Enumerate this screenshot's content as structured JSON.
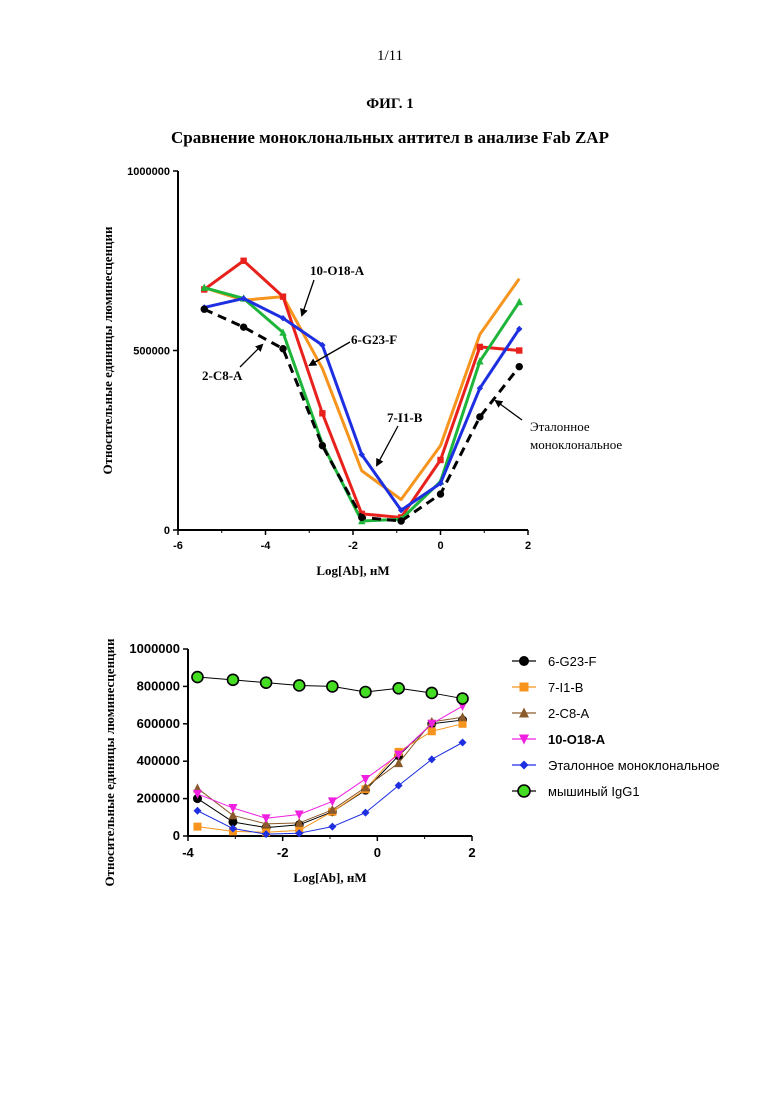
{
  "page": {
    "number": "1/11",
    "figure_label": "ФИГ. 1",
    "title": "Сравнение моноклональных антител в анализе Fab ZAP"
  },
  "chart_data": [
    {
      "type": "line",
      "xlabel": "Log[Ab], нМ",
      "ylabel": "Относительные единицы люминесценции",
      "xlim": [
        -6,
        2
      ],
      "ylim": [
        0,
        1000000
      ],
      "x_ticks": [
        "-6",
        "-4",
        "-2",
        "0",
        "2"
      ],
      "y_ticks": [
        "0",
        "500000",
        "1000000"
      ],
      "grid": false,
      "series": [
        {
          "name": "10-O18-A",
          "color": "#f7941d",
          "marker": "none",
          "dash": false,
          "points": [
            [
              -5.4,
              675000
            ],
            [
              -4.5,
              640000
            ],
            [
              -3.6,
              650000
            ],
            [
              -2.7,
              450000
            ],
            [
              -1.8,
              165000
            ],
            [
              -0.9,
              85000
            ],
            [
              0,
              235000
            ],
            [
              0.9,
              545000
            ],
            [
              1.8,
              700000
            ]
          ]
        },
        {
          "name": "6-G23-F",
          "color": "#e8211d",
          "marker": "square",
          "dash": false,
          "points": [
            [
              -5.4,
              670000
            ],
            [
              -4.5,
              750000
            ],
            [
              -3.6,
              650000
            ],
            [
              -2.7,
              325000
            ],
            [
              -1.8,
              45000
            ],
            [
              -0.9,
              35000
            ],
            [
              0,
              195000
            ],
            [
              0.9,
              510000
            ],
            [
              1.8,
              500000
            ]
          ]
        },
        {
          "name": "2-C8-A",
          "color": "#1db53a",
          "marker": "triangle",
          "dash": false,
          "points": [
            [
              -5.4,
              675000
            ],
            [
              -4.5,
              645000
            ],
            [
              -3.6,
              550000
            ],
            [
              -2.7,
              240000
            ],
            [
              -1.8,
              25000
            ],
            [
              -0.9,
              30000
            ],
            [
              0,
              135000
            ],
            [
              0.9,
              470000
            ],
            [
              1.8,
              635000
            ]
          ]
        },
        {
          "name": "7-I1-B",
          "color": "#1d2fe0",
          "marker": "diamond",
          "dash": false,
          "points": [
            [
              -5.4,
              620000
            ],
            [
              -4.5,
              645000
            ],
            [
              -3.6,
              590000
            ],
            [
              -2.7,
              515000
            ],
            [
              -1.8,
              210000
            ],
            [
              -0.9,
              55000
            ],
            [
              0,
              130000
            ],
            [
              0.9,
              395000
            ],
            [
              1.8,
              560000
            ]
          ]
        },
        {
          "name": "Эталонное моноклональное",
          "color": "#000000",
          "marker": "circle",
          "dash": true,
          "points": [
            [
              -5.4,
              615000
            ],
            [
              -4.5,
              565000
            ],
            [
              -3.6,
              505000
            ],
            [
              -2.7,
              235000
            ],
            [
              -1.8,
              35000
            ],
            [
              -0.9,
              25000
            ],
            [
              0,
              100000
            ],
            [
              0.9,
              315000
            ],
            [
              1.8,
              455000
            ]
          ]
        }
      ],
      "annotations": [
        "10-O18-A",
        "6-G23-F",
        "2-C8-A",
        "7-I1-B",
        "Эталонное",
        "моноклональное"
      ]
    },
    {
      "type": "line",
      "xlabel": "Log[Ab], нМ",
      "ylabel": "Относительные единицы люминесценции",
      "xlim": [
        -4,
        2
      ],
      "ylim": [
        0,
        1000000
      ],
      "x_ticks": [
        "-4",
        "-2",
        "0",
        "2"
      ],
      "y_ticks": [
        "0",
        "200000",
        "400000",
        "600000",
        "800000",
        "1000000"
      ],
      "grid": false,
      "legend_position": "right",
      "series": [
        {
          "name": "6-G23-F",
          "color": "#000000",
          "marker": "circle",
          "points": [
            [
              -3.8,
              200000
            ],
            [
              -3.05,
              75000
            ],
            [
              -2.35,
              45000
            ],
            [
              -1.65,
              60000
            ],
            [
              -0.95,
              130000
            ],
            [
              -0.25,
              245000
            ],
            [
              0.45,
              430000
            ],
            [
              1.15,
              600000
            ],
            [
              1.8,
              620000
            ]
          ]
        },
        {
          "name": "7-I1-B",
          "color": "#f7941d",
          "marker": "square",
          "points": [
            [
              -3.8,
              50000
            ],
            [
              -3.05,
              25000
            ],
            [
              -2.35,
              20000
            ],
            [
              -1.65,
              30000
            ],
            [
              -0.95,
              130000
            ],
            [
              -0.25,
              250000
            ],
            [
              0.45,
              450000
            ],
            [
              1.15,
              560000
            ],
            [
              1.8,
              600000
            ]
          ]
        },
        {
          "name": "2-C8-A",
          "color": "#8b5a2b",
          "marker": "triangle",
          "points": [
            [
              -3.8,
              255000
            ],
            [
              -3.05,
              110000
            ],
            [
              -2.35,
              65000
            ],
            [
              -1.65,
              70000
            ],
            [
              -0.95,
              140000
            ],
            [
              -0.25,
              260000
            ],
            [
              0.45,
              390000
            ],
            [
              1.15,
              610000
            ],
            [
              1.8,
              635000
            ]
          ]
        },
        {
          "name": "10-O18-A",
          "color": "#f020e0",
          "marker": "triangle-down",
          "bold": true,
          "points": [
            [
              -3.8,
              225000
            ],
            [
              -3.05,
              150000
            ],
            [
              -2.35,
              95000
            ],
            [
              -1.65,
              115000
            ],
            [
              -0.95,
              185000
            ],
            [
              -0.25,
              305000
            ],
            [
              0.45,
              435000
            ],
            [
              1.15,
              600000
            ],
            [
              1.8,
              695000
            ]
          ]
        },
        {
          "name": "Эталонное моноклональное",
          "color": "#1d2fe0",
          "marker": "diamond",
          "points": [
            [
              -3.8,
              135000
            ],
            [
              -3.05,
              40000
            ],
            [
              -2.35,
              10000
            ],
            [
              -1.65,
              15000
            ],
            [
              -0.95,
              50000
            ],
            [
              -0.25,
              125000
            ],
            [
              0.45,
              270000
            ],
            [
              1.15,
              410000
            ],
            [
              1.8,
              500000
            ]
          ]
        },
        {
          "name": "мышиный IgG1",
          "color": "#000000",
          "fill": "#44dd22",
          "marker": "circle-big",
          "points": [
            [
              -3.8,
              850000
            ],
            [
              -3.05,
              835000
            ],
            [
              -2.35,
              820000
            ],
            [
              -1.65,
              805000
            ],
            [
              -0.95,
              800000
            ],
            [
              -0.25,
              770000
            ],
            [
              0.45,
              790000
            ],
            [
              1.15,
              765000
            ],
            [
              1.8,
              735000
            ]
          ]
        }
      ]
    }
  ]
}
